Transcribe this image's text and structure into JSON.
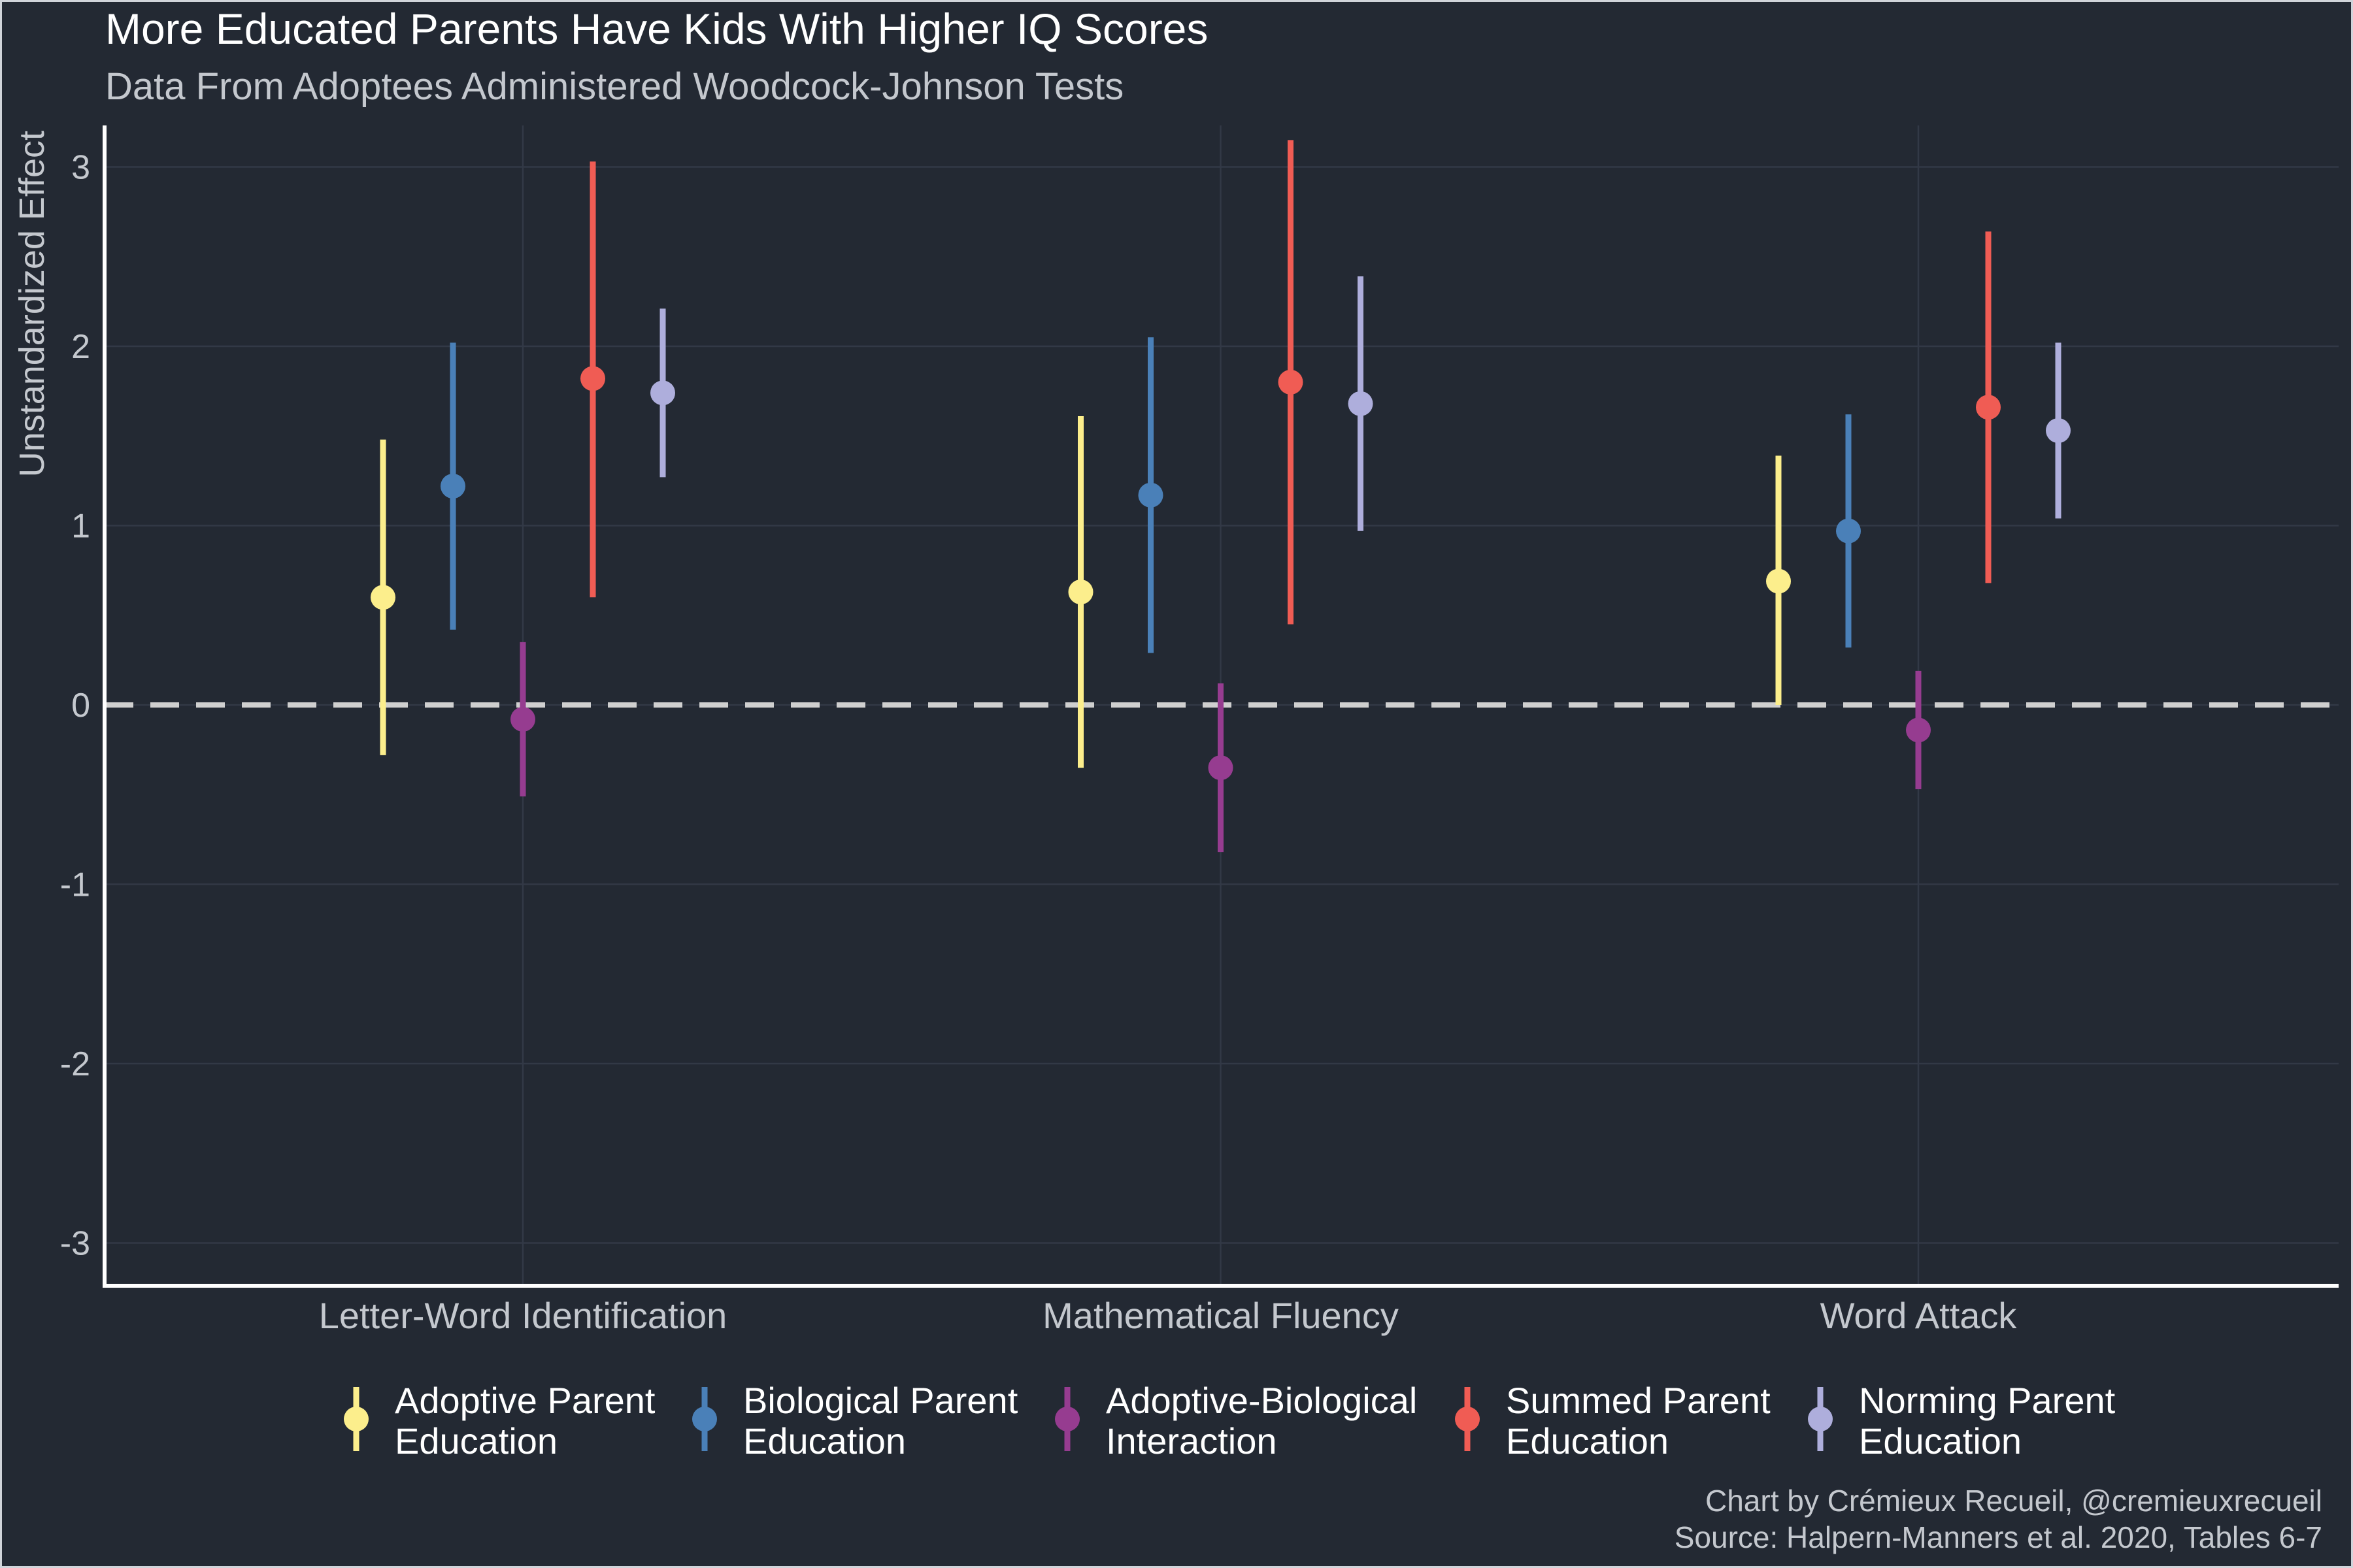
{
  "chart_data": {
    "type": "pointrange",
    "title": "More Educated Parents Have Kids With Higher IQ Scores",
    "subtitle": "Data From Adoptees Administered Woodcock-Johnson Tests",
    "xlabel": "",
    "ylabel": "Unstandardized Effect",
    "ylim": [
      -3.2,
      3.2
    ],
    "yticks": [
      3,
      2,
      1,
      0,
      -1,
      -2,
      -3
    ],
    "ytick_labels": [
      "3",
      "2",
      "1",
      "0",
      "-1",
      "-2",
      "-3"
    ],
    "reference_line": 0,
    "grid": true,
    "legend_position": "bottom",
    "categories": [
      "Letter-Word Identification",
      "Mathematical Fluency",
      "Word Attack"
    ],
    "series": [
      {
        "name_lines": [
          "Adoptive Parent",
          "Education"
        ],
        "color": "#fcee8c",
        "points": [
          {
            "estimate": 0.6,
            "lower": -0.28,
            "upper": 1.48
          },
          {
            "estimate": 0.63,
            "lower": -0.35,
            "upper": 1.61
          },
          {
            "estimate": 0.69,
            "lower": 0.0,
            "upper": 1.39
          }
        ]
      },
      {
        "name_lines": [
          "Biological Parent",
          "Education"
        ],
        "color": "#4a80b8",
        "points": [
          {
            "estimate": 1.22,
            "lower": 0.42,
            "upper": 2.02
          },
          {
            "estimate": 1.17,
            "lower": 0.29,
            "upper": 2.05
          },
          {
            "estimate": 0.97,
            "lower": 0.32,
            "upper": 1.62
          }
        ]
      },
      {
        "name_lines": [
          "Adoptive-Biological",
          "Interaction"
        ],
        "color": "#963c90",
        "points": [
          {
            "estimate": -0.08,
            "lower": -0.51,
            "upper": 0.35
          },
          {
            "estimate": -0.35,
            "lower": -0.82,
            "upper": 0.12
          },
          {
            "estimate": -0.14,
            "lower": -0.47,
            "upper": 0.19
          }
        ]
      },
      {
        "name_lines": [
          "Summed Parent",
          "Education"
        ],
        "color": "#f05c54",
        "points": [
          {
            "estimate": 1.82,
            "lower": 0.6,
            "upper": 3.03
          },
          {
            "estimate": 1.8,
            "lower": 0.45,
            "upper": 3.15
          },
          {
            "estimate": 1.66,
            "lower": 0.68,
            "upper": 2.64
          }
        ]
      },
      {
        "name_lines": [
          "Norming Parent",
          "Education"
        ],
        "color": "#aeaedc",
        "points": [
          {
            "estimate": 1.74,
            "lower": 1.27,
            "upper": 2.21
          },
          {
            "estimate": 1.68,
            "lower": 0.97,
            "upper": 2.39
          },
          {
            "estimate": 1.53,
            "lower": 1.04,
            "upper": 2.02
          }
        ]
      }
    ]
  },
  "caption": {
    "line1": "Chart by Crémieux Recueil, @cremieuxrecueil",
    "line2": "Source: Halpern-Manners et al. 2020, Tables 6-7"
  },
  "colors": {
    "background": "#232933",
    "grid": "#323946",
    "axis": "#ffffff",
    "title_text": "#ffffff",
    "muted_text": "#c4c8ce",
    "reference_line": "#cfcfcf"
  }
}
